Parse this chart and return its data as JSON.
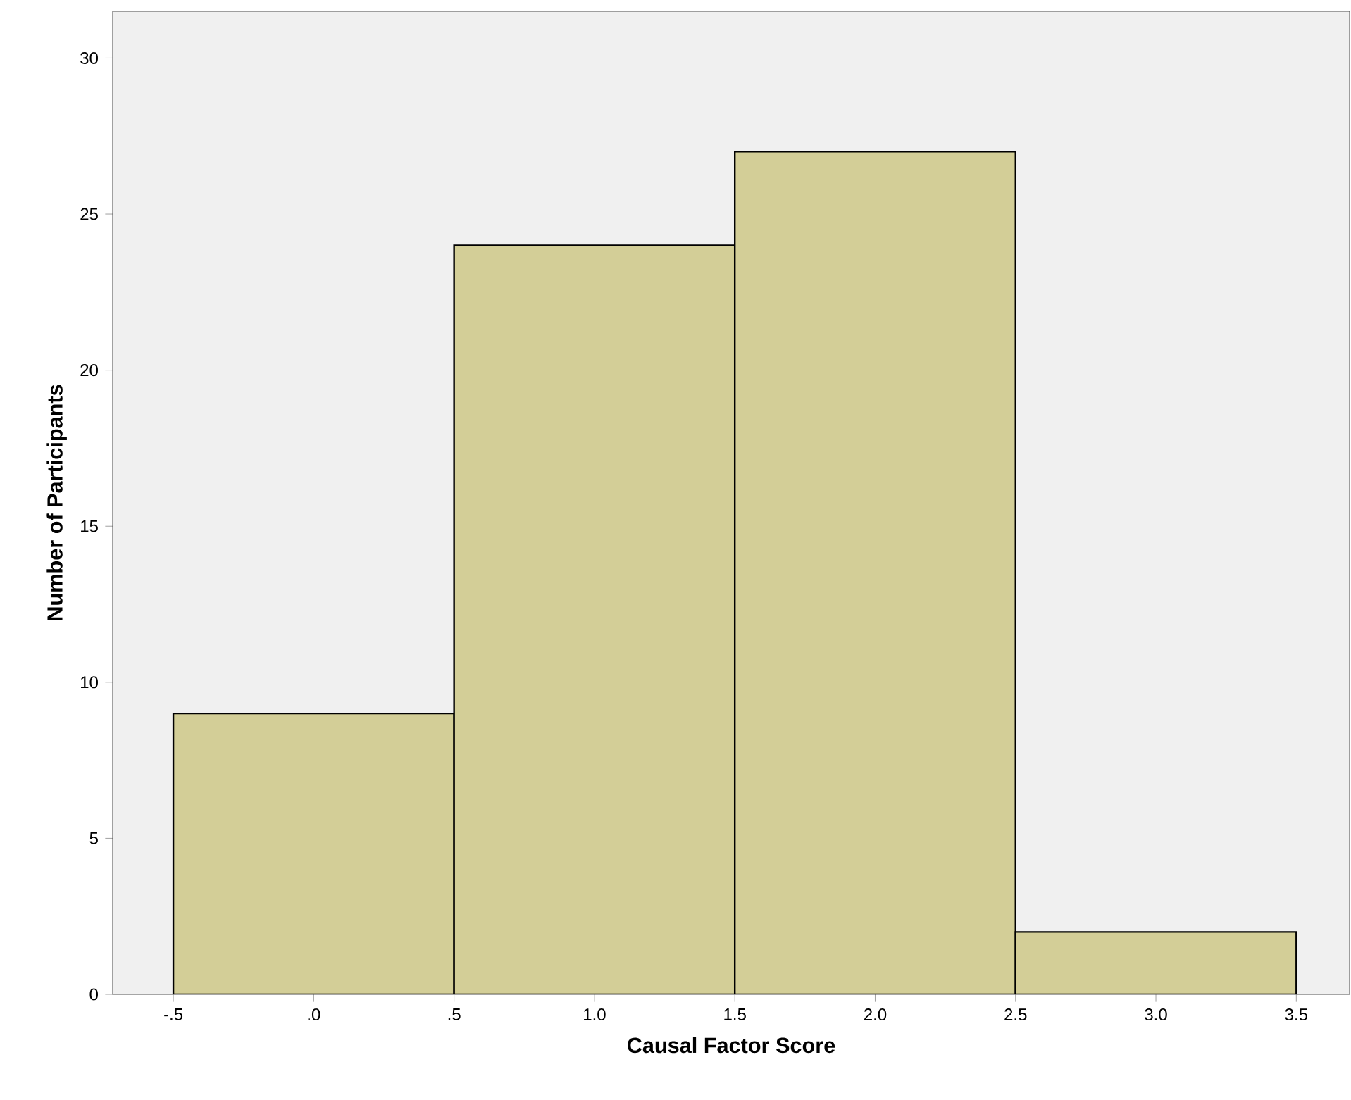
{
  "chart_data": {
    "type": "histogram",
    "xlabel": "Causal Factor Score",
    "ylabel": "Number of Participants",
    "bins": [
      -0.5,
      0.5,
      1.5,
      2.5,
      3.5
    ],
    "values": [
      9,
      24,
      27,
      2
    ],
    "color": "#d3ce97",
    "xlim": [
      -0.716,
      3.69
    ],
    "ylim": [
      0,
      31.5
    ],
    "xticks": [
      {
        "value": -0.5,
        "label": "-.5"
      },
      {
        "value": 0,
        "label": ".0"
      },
      {
        "value": 0.5,
        "label": ".5"
      },
      {
        "value": 1.0,
        "label": "1.0"
      },
      {
        "value": 1.5,
        "label": "1.5"
      },
      {
        "value": 2.0,
        "label": "2.0"
      },
      {
        "value": 2.5,
        "label": "2.5"
      },
      {
        "value": 3.0,
        "label": "3.0"
      },
      {
        "value": 3.5,
        "label": "3.5"
      }
    ],
    "yticks": [
      0,
      5,
      10,
      15,
      20,
      25,
      30
    ],
    "grid": false
  }
}
